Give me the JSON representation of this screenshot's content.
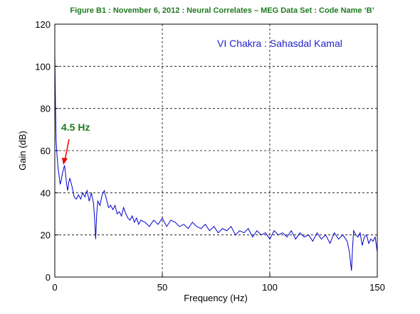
{
  "chart_data": {
    "type": "line",
    "title": "Figure B1 : November 6, 2012 : Neural Correlates – MEG Data Set : Code Name ‘B’",
    "x_label": "Frequency (Hz)",
    "y_label": "Gain (dB)",
    "annotations": [
      "VI Chakra : Sahasdal Kamal",
      "4.5 Hz"
    ],
    "xlim": [
      0,
      150
    ],
    "xticks": [
      0,
      50,
      100,
      150
    ],
    "ylim": [
      0,
      120
    ],
    "yticks": [
      0,
      20,
      40,
      60,
      80,
      100,
      120
    ],
    "grid": true,
    "series": [
      {
        "name": "Gain",
        "color": "#0000cc",
        "x": [
          0,
          0.3,
          0.6,
          1,
          1.5,
          2,
          2.5,
          3,
          3.5,
          4,
          4.5,
          5,
          5.5,
          6,
          6.5,
          7,
          7.5,
          8,
          9,
          10,
          11,
          12,
          13,
          14,
          15,
          16,
          17,
          18,
          18.5,
          19,
          19.5,
          20,
          21,
          22,
          23,
          24,
          25,
          26,
          27,
          28,
          29,
          30,
          31,
          32,
          33,
          34,
          35,
          36,
          37,
          38,
          39,
          40,
          42,
          44,
          46,
          48,
          50,
          52,
          54,
          56,
          58,
          60,
          62,
          64,
          66,
          68,
          70,
          72,
          74,
          76,
          78,
          80,
          82,
          84,
          86,
          88,
          90,
          92,
          94,
          96,
          98,
          100,
          102,
          104,
          106,
          108,
          110,
          112,
          114,
          116,
          118,
          120,
          122,
          124,
          126,
          128,
          130,
          132,
          134,
          136,
          137,
          138,
          138.5,
          139,
          140,
          141,
          142,
          143,
          144,
          145,
          146,
          147,
          148,
          149,
          150
        ],
        "values": [
          106,
          82,
          65,
          58,
          52,
          48,
          44,
          46,
          49,
          51,
          53,
          49,
          44,
          41,
          45,
          47,
          45,
          43,
          38,
          37,
          39,
          37,
          40,
          38,
          41,
          36,
          40,
          35,
          28,
          18,
          30,
          36,
          34,
          39,
          41,
          37,
          33,
          34,
          32,
          34,
          30,
          31,
          29,
          33,
          30,
          28,
          27,
          29,
          26,
          28,
          25,
          27,
          26,
          24,
          27,
          25,
          28,
          24,
          27,
          26,
          24,
          25,
          23,
          26,
          24,
          23,
          25,
          22,
          24,
          21,
          23,
          22,
          24,
          20,
          22,
          21,
          23,
          19,
          22,
          20,
          21,
          18,
          22,
          20,
          21,
          19,
          22,
          18,
          21,
          19,
          20,
          17,
          21,
          18,
          20,
          16,
          21,
          18,
          20,
          17,
          12,
          3,
          14,
          22,
          20,
          19,
          21,
          15,
          19,
          20,
          16,
          18,
          17,
          19,
          12
        ]
      }
    ]
  }
}
